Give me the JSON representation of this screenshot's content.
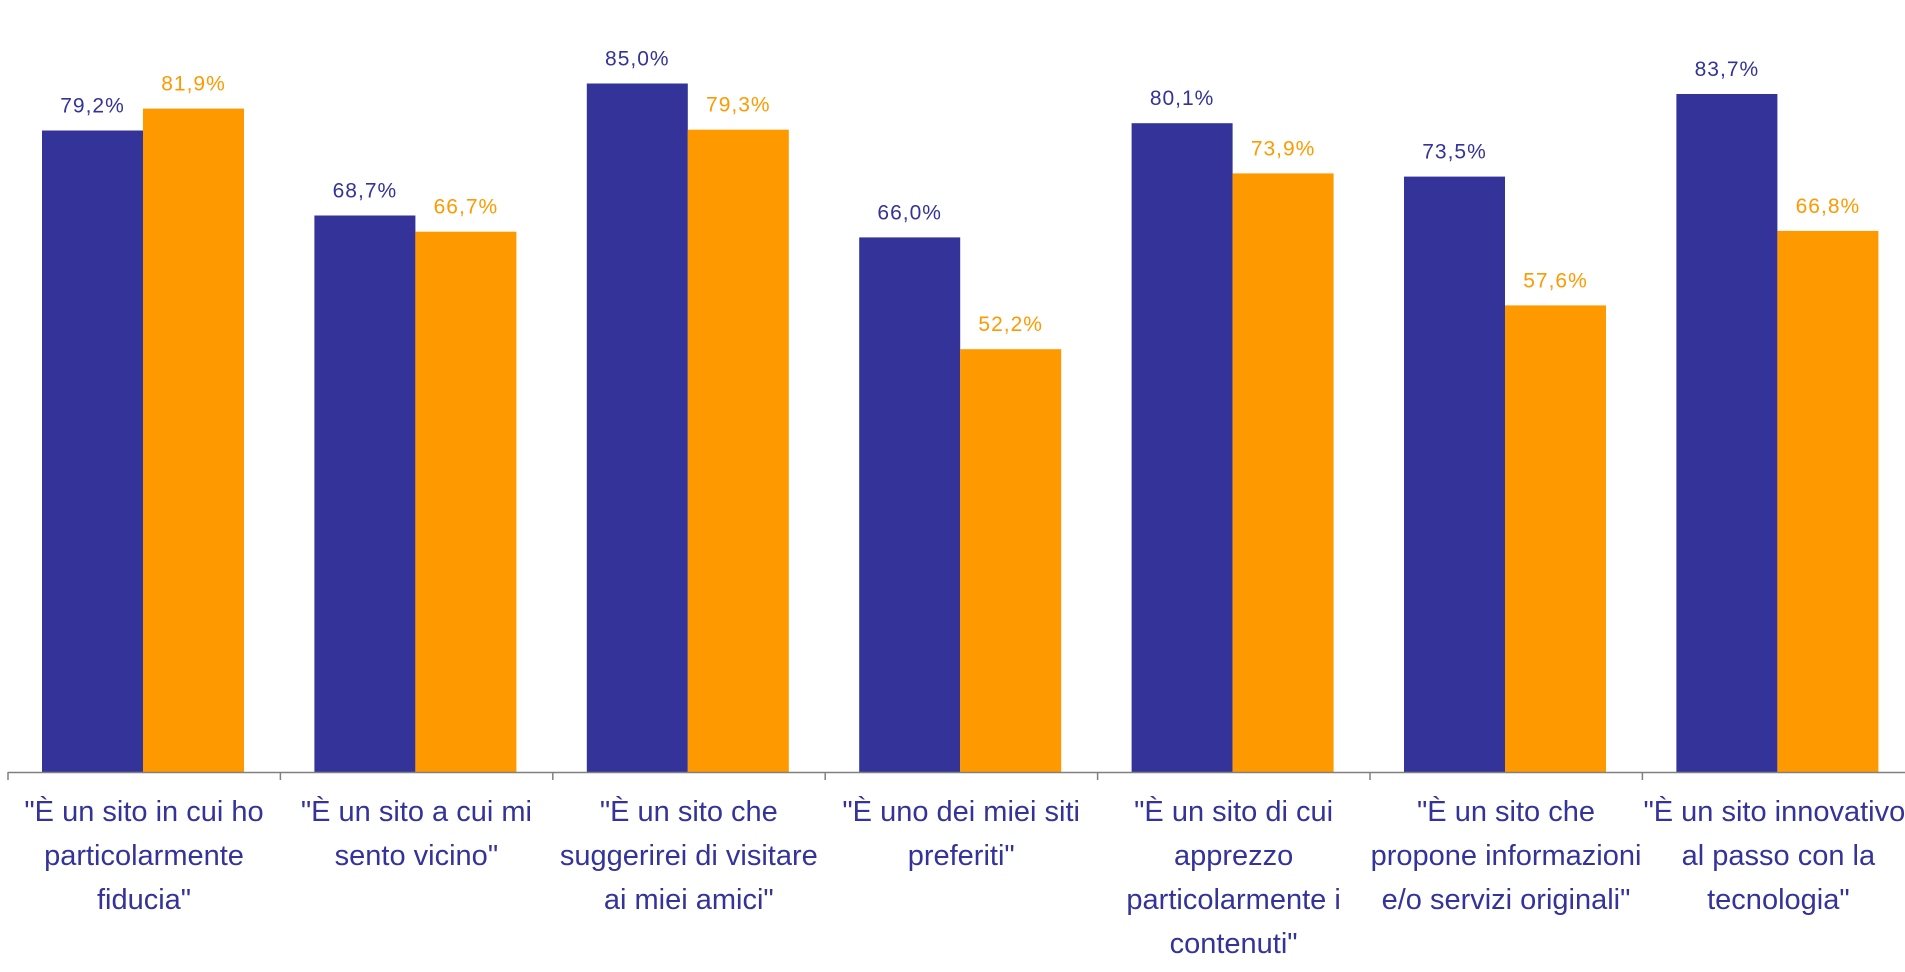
{
  "colors": {
    "series1": "#333399",
    "series2": "#ff9900",
    "axis": "#808080"
  },
  "chart_data": {
    "type": "bar",
    "title": "",
    "xlabel": "",
    "ylabel": "",
    "ylim": [
      0,
      90
    ],
    "legend": "none",
    "grid": false,
    "categories": [
      "\"È un sito in cui ho particolarmente fiducia\"",
      "\"È un sito a cui mi sento vicino\"",
      "\"È un sito che suggerirei di visitare ai miei amici\"",
      "\"È uno dei miei siti preferiti\"",
      "\"È un sito di cui apprezzo particolarmente i contenuti\"",
      "\"È un sito che propone informazioni e/o servizi originali\"",
      "\"È un sito innovativo, al passo con la tecnologia\""
    ],
    "series": [
      {
        "values": [
          79.2,
          68.7,
          85.0,
          66.0,
          80.1,
          73.5,
          83.7
        ],
        "labels": [
          "79,2%",
          "68,7%",
          "85,0%",
          "66,0%",
          "80,1%",
          "73,5%",
          "83,7%"
        ]
      },
      {
        "values": [
          81.9,
          66.7,
          79.3,
          52.2,
          73.9,
          57.6,
          66.8
        ],
        "labels": [
          "81,9%",
          "66,7%",
          "79,3%",
          "52,2%",
          "73,9%",
          "57,6%",
          "66,8%"
        ]
      }
    ]
  }
}
